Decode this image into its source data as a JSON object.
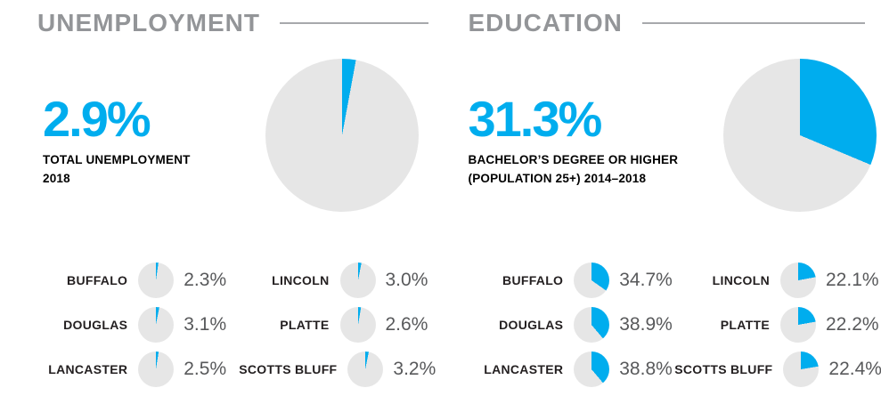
{
  "colors": {
    "accent": "#00ADEE",
    "pie_remainder": "#E6E6E6",
    "title_gray": "#939598",
    "value_gray": "#58595B",
    "label_black": "#231F20",
    "rule_gray": "#A7A9AC",
    "divider_gray": "#B1B3B6"
  },
  "chart_data": [
    {
      "type": "pie",
      "title": "UNEMPLOYMENT",
      "stat": "2.9%",
      "stat_value": 2.9,
      "stat_label_line1": "TOTAL UNEMPLOYMENT",
      "stat_label_line2": "2018",
      "units": "%",
      "slice_start": "12 o'clock, clockwise",
      "legend_position": "none",
      "counties": [
        {
          "name": "BUFFALO",
          "value": 2.3,
          "display": "2.3%"
        },
        {
          "name": "DOUGLAS",
          "value": 3.1,
          "display": "3.1%"
        },
        {
          "name": "LANCASTER",
          "value": 2.5,
          "display": "2.5%"
        },
        {
          "name": "LINCOLN",
          "value": 3.0,
          "display": "3.0%"
        },
        {
          "name": "PLATTE",
          "value": 2.6,
          "display": "2.6%"
        },
        {
          "name": "SCOTTS BLUFF",
          "value": 3.2,
          "display": "3.2%"
        }
      ]
    },
    {
      "type": "pie",
      "title": "EDUCATION",
      "stat": "31.3%",
      "stat_value": 31.3,
      "stat_label_line1": "BACHELOR’S DEGREE OR HIGHER",
      "stat_label_line2": "(POPULATION 25+) 2014–2018",
      "units": "%",
      "slice_start": "12 o'clock, clockwise",
      "legend_position": "none",
      "counties": [
        {
          "name": "BUFFALO",
          "value": 34.7,
          "display": "34.7%"
        },
        {
          "name": "DOUGLAS",
          "value": 38.9,
          "display": "38.9%"
        },
        {
          "name": "LANCASTER",
          "value": 38.8,
          "display": "38.8%"
        },
        {
          "name": "LINCOLN",
          "value": 22.1,
          "display": "22.1%"
        },
        {
          "name": "PLATTE",
          "value": 22.2,
          "display": "22.2%"
        },
        {
          "name": "SCOTTS BLUFF",
          "value": 22.4,
          "display": "22.4%"
        }
      ]
    }
  ]
}
